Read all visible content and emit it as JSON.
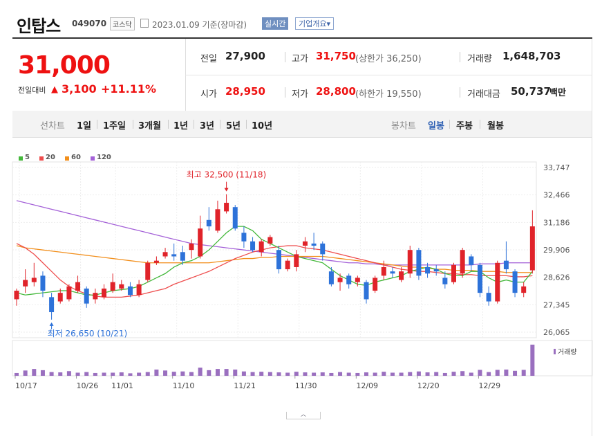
{
  "header": {
    "name": "인탑스",
    "code": "049070",
    "market": "코스닥",
    "date": "2023.01.09 기준(장마감)",
    "realtime": "실시간",
    "company_info": "기업개요▾"
  },
  "quote": {
    "price": "31,000",
    "change_label": "전일대비",
    "change_arrow": "▲",
    "change": "3,100",
    "change_pct": "+11.11%",
    "prev_label": "전일",
    "prev": "27,900",
    "high_label": "고가",
    "high": "31,750",
    "upper_limit": "(상한가 36,250)",
    "volume_label": "거래량",
    "volume": "1,648,703",
    "open_label": "시가",
    "open": "28,950",
    "low_label": "저가",
    "low": "28,800",
    "lower_limit": "(하한가 19,550)",
    "amount_label": "거래대금",
    "amount": "50,737",
    "amount_unit": "백만"
  },
  "tabs": {
    "line_label": "선차트",
    "line_items": [
      "1일",
      "1주일",
      "3개월",
      "1년",
      "3년",
      "5년",
      "10년"
    ],
    "candle_label": "봉차트",
    "candle_items": [
      "일봉",
      "주봉",
      "월봉"
    ],
    "selected": "일봉"
  },
  "chart_data": {
    "type": "candlestick",
    "legend": [
      {
        "name": "5",
        "color": "#44b83b"
      },
      {
        "name": "20",
        "color": "#ee4c4c"
      },
      {
        "name": "60",
        "color": "#f28f1c"
      },
      {
        "name": "120",
        "color": "#a461d8"
      }
    ],
    "y_ticks": [
      "33,747",
      "32,466",
      "31,186",
      "29,906",
      "28,626",
      "27,345",
      "26,065"
    ],
    "y_tick_values": [
      33747,
      32466,
      31186,
      29906,
      28626,
      27345,
      26065
    ],
    "x_ticks": [
      {
        "label": "10/17",
        "index": 0
      },
      {
        "label": "10/26",
        "index": 7
      },
      {
        "label": "11/01",
        "index": 11
      },
      {
        "label": "11/10",
        "index": 18
      },
      {
        "label": "11/21",
        "index": 25
      },
      {
        "label": "11/30",
        "index": 32
      },
      {
        "label": "12/09",
        "index": 39
      },
      {
        "label": "12/20",
        "index": 46
      },
      {
        "label": "12/29",
        "index": 53
      }
    ],
    "max_annotation": {
      "text": "최고 32,500 (11/18)",
      "index": 24,
      "value": 32500
    },
    "min_annotation": {
      "text": "최저 26,650 (10/21)",
      "index": 4,
      "value": 26650
    },
    "volume_label": "거래량",
    "candles": [
      {
        "o": 27600,
        "c": 28000,
        "h": 28100,
        "l": 27300
      },
      {
        "o": 28200,
        "c": 28500,
        "h": 29000,
        "l": 27900
      },
      {
        "o": 28400,
        "c": 28600,
        "h": 29300,
        "l": 28200
      },
      {
        "o": 28700,
        "c": 28000,
        "h": 28900,
        "l": 27700
      },
      {
        "o": 27700,
        "c": 27000,
        "h": 27900,
        "l": 26650
      },
      {
        "o": 27500,
        "c": 27900,
        "h": 28100,
        "l": 27400
      },
      {
        "o": 27600,
        "c": 28200,
        "h": 28300,
        "l": 27500
      },
      {
        "o": 28000,
        "c": 28400,
        "h": 28700,
        "l": 27900
      },
      {
        "o": 28100,
        "c": 27400,
        "h": 28200,
        "l": 27200
      },
      {
        "o": 27600,
        "c": 27900,
        "h": 28100,
        "l": 27400
      },
      {
        "o": 27700,
        "c": 28100,
        "h": 28300,
        "l": 27600
      },
      {
        "o": 28000,
        "c": 28400,
        "h": 28800,
        "l": 27900
      },
      {
        "o": 28100,
        "c": 28300,
        "h": 28500,
        "l": 28000
      },
      {
        "o": 28200,
        "c": 27800,
        "h": 28400,
        "l": 27700
      },
      {
        "o": 27800,
        "c": 28300,
        "h": 28500,
        "l": 27700
      },
      {
        "o": 28500,
        "c": 29300,
        "h": 29400,
        "l": 28400
      },
      {
        "o": 29300,
        "c": 29400,
        "h": 29600,
        "l": 29200
      },
      {
        "o": 29600,
        "c": 29800,
        "h": 30000,
        "l": 29500
      },
      {
        "o": 29700,
        "c": 29600,
        "h": 30200,
        "l": 29400
      },
      {
        "o": 29800,
        "c": 29400,
        "h": 30100,
        "l": 29200
      },
      {
        "o": 29900,
        "c": 30200,
        "h": 30400,
        "l": 29500
      },
      {
        "o": 29600,
        "c": 30900,
        "h": 31500,
        "l": 29500
      },
      {
        "o": 31300,
        "c": 31000,
        "h": 31900,
        "l": 30800
      },
      {
        "o": 30800,
        "c": 31800,
        "h": 32200,
        "l": 30700
      },
      {
        "o": 31700,
        "c": 32100,
        "h": 32500,
        "l": 31600
      },
      {
        "o": 31900,
        "c": 30900,
        "h": 32000,
        "l": 30800
      },
      {
        "o": 30700,
        "c": 30300,
        "h": 31000,
        "l": 30000
      },
      {
        "o": 30300,
        "c": 29900,
        "h": 30500,
        "l": 29800
      },
      {
        "o": 29800,
        "c": 30300,
        "h": 30400,
        "l": 29600
      },
      {
        "o": 30200,
        "c": 30500,
        "h": 30600,
        "l": 30100
      },
      {
        "o": 29900,
        "c": 29000,
        "h": 30100,
        "l": 28800
      },
      {
        "o": 29000,
        "c": 29400,
        "h": 29500,
        "l": 28900
      },
      {
        "o": 29100,
        "c": 29700,
        "h": 29900,
        "l": 28900
      },
      {
        "o": 30100,
        "c": 30300,
        "h": 30500,
        "l": 29800
      },
      {
        "o": 30200,
        "c": 30100,
        "h": 30700,
        "l": 29900
      },
      {
        "o": 30200,
        "c": 29700,
        "h": 30300,
        "l": 29400
      },
      {
        "o": 28900,
        "c": 28300,
        "h": 29100,
        "l": 28200
      },
      {
        "o": 28400,
        "c": 28600,
        "h": 28800,
        "l": 28000
      },
      {
        "o": 28700,
        "c": 28300,
        "h": 28800,
        "l": 28100
      },
      {
        "o": 28400,
        "c": 28600,
        "h": 28700,
        "l": 28200
      },
      {
        "o": 28400,
        "c": 27600,
        "h": 28500,
        "l": 27400
      },
      {
        "o": 28000,
        "c": 28600,
        "h": 28700,
        "l": 27900
      },
      {
        "o": 28700,
        "c": 29100,
        "h": 29400,
        "l": 28500
      },
      {
        "o": 28900,
        "c": 28800,
        "h": 29100,
        "l": 28600
      },
      {
        "o": 28500,
        "c": 28900,
        "h": 29100,
        "l": 28400
      },
      {
        "o": 28800,
        "c": 29900,
        "h": 30100,
        "l": 28600
      },
      {
        "o": 29900,
        "c": 28700,
        "h": 30000,
        "l": 28500
      },
      {
        "o": 29100,
        "c": 28800,
        "h": 29300,
        "l": 28600
      },
      {
        "o": 29000,
        "c": 28900,
        "h": 29200,
        "l": 28700
      },
      {
        "o": 28600,
        "c": 28300,
        "h": 28900,
        "l": 28100
      },
      {
        "o": 28400,
        "c": 29200,
        "h": 29300,
        "l": 28300
      },
      {
        "o": 28800,
        "c": 29900,
        "h": 30000,
        "l": 28600
      },
      {
        "o": 29600,
        "c": 29200,
        "h": 29700,
        "l": 28900
      },
      {
        "o": 29200,
        "c": 27900,
        "h": 29300,
        "l": 27700
      },
      {
        "o": 27900,
        "c": 27500,
        "h": 28200,
        "l": 27300
      },
      {
        "o": 27500,
        "c": 29300,
        "h": 29400,
        "l": 27400
      },
      {
        "o": 29400,
        "c": 29000,
        "h": 30300,
        "l": 28800
      },
      {
        "o": 28900,
        "c": 27900,
        "h": 29000,
        "l": 27700
      },
      {
        "o": 27900,
        "c": 28200,
        "h": 28400,
        "l": 27700
      },
      {
        "o": 28950,
        "c": 31000,
        "h": 31750,
        "l": 28800
      }
    ],
    "volume": [
      0.09,
      0.17,
      0.22,
      0.18,
      0.12,
      0.11,
      0.15,
      0.1,
      0.12,
      0.09,
      0.1,
      0.1,
      0.11,
      0.08,
      0.1,
      0.12,
      0.2,
      0.17,
      0.13,
      0.14,
      0.12,
      0.26,
      0.18,
      0.22,
      0.22,
      0.2,
      0.14,
      0.12,
      0.13,
      0.12,
      0.11,
      0.1,
      0.13,
      0.11,
      0.1,
      0.11,
      0.09,
      0.12,
      0.1,
      0.09,
      0.11,
      0.1,
      0.13,
      0.1,
      0.1,
      0.12,
      0.14,
      0.11,
      0.12,
      0.09,
      0.13,
      0.15,
      0.1,
      0.19,
      0.12,
      0.19,
      0.2,
      0.16,
      0.19,
      1.0
    ],
    "ma5": [
      27900,
      27800,
      27850,
      27900,
      27950,
      28000,
      28000,
      27900,
      27800,
      27800,
      27900,
      28000,
      28050,
      28100,
      28200,
      28400,
      28600,
      28800,
      29100,
      29300,
      29400,
      29600,
      29900,
      30300,
      30700,
      31000,
      31000,
      30800,
      30400,
      30200,
      30000,
      29800,
      29600,
      29500,
      29400,
      29300,
      29000,
      28700,
      28500,
      28300,
      28250,
      28400,
      28500,
      28600,
      28700,
      28900,
      29000,
      29100,
      29000,
      28800,
      28700,
      28700,
      28900,
      28900,
      28600,
      28400,
      28500,
      28400,
      28400,
      28900
    ],
    "ma20": [
      30200,
      30000,
      29700,
      29300,
      28900,
      28500,
      28200,
      28000,
      27850,
      27750,
      27700,
      27700,
      27700,
      27750,
      27800,
      27900,
      28000,
      28100,
      28300,
      28450,
      28600,
      28750,
      28900,
      29100,
      29300,
      29500,
      29650,
      29800,
      29900,
      30000,
      30050,
      30100,
      30100,
      30000,
      29950,
      29900,
      29800,
      29700,
      29600,
      29500,
      29400,
      29300,
      29200,
      29100,
      29000,
      28950,
      28900,
      28900,
      28850,
      28800,
      28800,
      28750,
      28750,
      28700,
      28700,
      28700,
      28700,
      28650,
      28650,
      28700
    ],
    "ma60": [
      30100,
      30000,
      29950,
      29900,
      29850,
      29800,
      29750,
      29700,
      29650,
      29600,
      29550,
      29500,
      29450,
      29400,
      29350,
      29300,
      29300,
      29300,
      29300,
      29300,
      29300,
      29300,
      29300,
      29350,
      29400,
      29450,
      29500,
      29500,
      29550,
      29550,
      29600,
      29600,
      29600,
      29600,
      29600,
      29600,
      29550,
      29500,
      29450,
      29400,
      29350,
      29300,
      29250,
      29200,
      29150,
      29100,
      29100,
      29050,
      29000,
      29000,
      28950,
      28950,
      28950,
      28900,
      28900,
      28900,
      28850,
      28850,
      28850,
      28850
    ],
    "ma120": [
      32200,
      32100,
      32000,
      31900,
      31800,
      31700,
      31600,
      31500,
      31400,
      31300,
      31200,
      31100,
      31000,
      30900,
      30800,
      30700,
      30600,
      30500,
      30400,
      30300,
      30200,
      30150,
      30100,
      30050,
      30000,
      29950,
      29900,
      29850,
      29800,
      29750,
      29700,
      29650,
      29600,
      29550,
      29500,
      29450,
      29400,
      29350,
      29300,
      29300,
      29250,
      29250,
      29200,
      29200,
      29200,
      29200,
      29200,
      29200,
      29200,
      29200,
      29200,
      29200,
      29200,
      29250,
      29250,
      29250,
      29300,
      29300,
      29300,
      29300
    ]
  }
}
